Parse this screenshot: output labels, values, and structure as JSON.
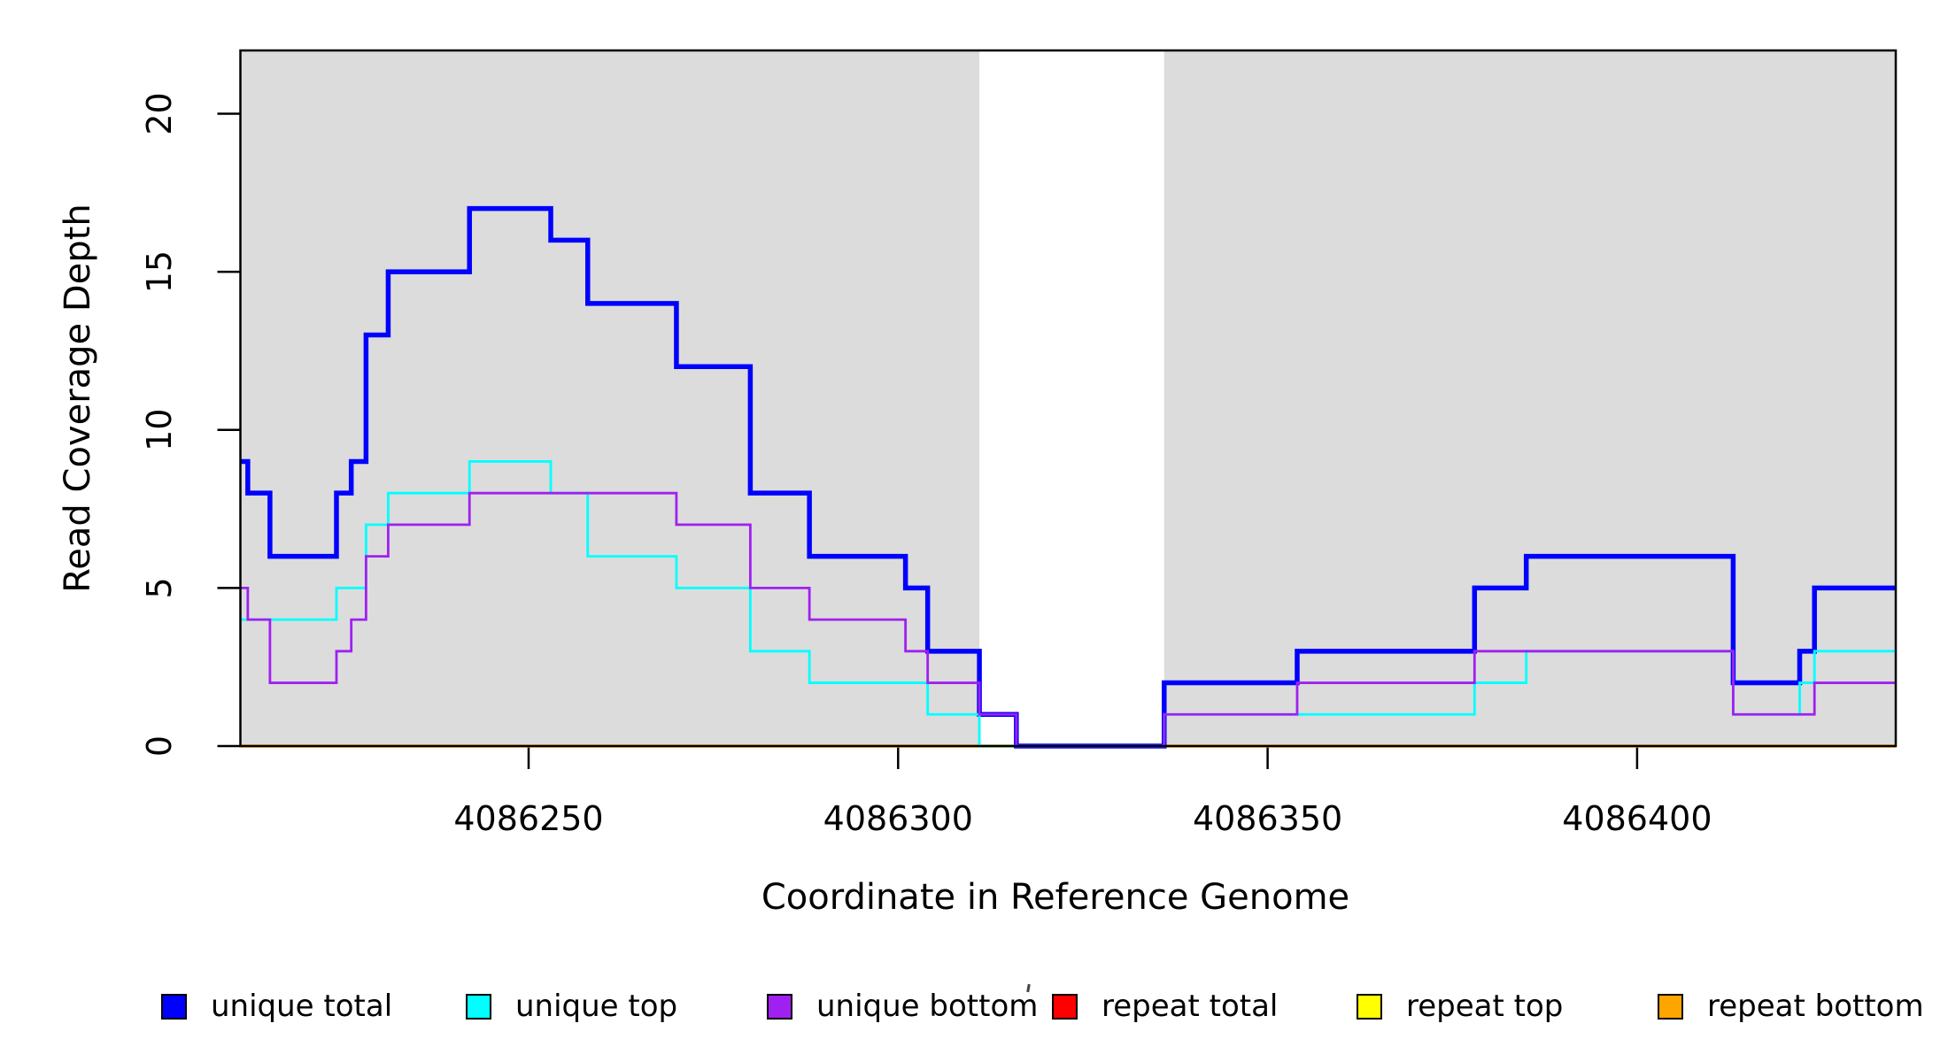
{
  "chart_data": {
    "type": "line",
    "subtype": "step-post",
    "title": "",
    "xlabel": "Coordinate in Reference Genome",
    "ylabel": "Read Coverage Depth",
    "x_range": [
      4086211,
      4086435
    ],
    "y_range": [
      0,
      22
    ],
    "x_ticks": [
      4086250,
      4086300,
      4086350,
      4086400
    ],
    "y_ticks": [
      0,
      5,
      10,
      15,
      20
    ],
    "grid": false,
    "legend_position": "bottom",
    "plot_background": "#ffffff",
    "shade_color": "#DCDCDC",
    "shaded_regions": [
      [
        4086211,
        4086311
      ],
      [
        4086336,
        4086435
      ]
    ],
    "white_gap_region": [
      4086311,
      4086336
    ],
    "draw_order": [
      3,
      4,
      5,
      0,
      1,
      2
    ],
    "series": [
      {
        "name": "unique total",
        "color": "#0000FF",
        "line_width": 5.5,
        "breakpoints": [
          [
            4086211,
            9
          ],
          [
            4086212,
            8
          ],
          [
            4086215,
            6
          ],
          [
            4086224,
            8
          ],
          [
            4086226,
            9
          ],
          [
            4086228,
            13
          ],
          [
            4086231,
            15
          ],
          [
            4086242,
            17
          ],
          [
            4086253,
            16
          ],
          [
            4086258,
            14
          ],
          [
            4086270,
            12
          ],
          [
            4086280,
            8
          ],
          [
            4086288,
            6
          ],
          [
            4086301,
            5
          ],
          [
            4086304,
            3
          ],
          [
            4086311,
            1
          ],
          [
            4086316,
            0
          ],
          [
            4086336,
            2
          ],
          [
            4086354,
            3
          ],
          [
            4086378,
            5
          ],
          [
            4086385,
            6
          ],
          [
            4086413,
            2
          ],
          [
            4086422,
            3
          ],
          [
            4086424,
            5
          ]
        ]
      },
      {
        "name": "unique top",
        "color": "#00FFFF",
        "line_width": 2.8,
        "breakpoints": [
          [
            4086211,
            4
          ],
          [
            4086224,
            5
          ],
          [
            4086228,
            7
          ],
          [
            4086231,
            8
          ],
          [
            4086242,
            9
          ],
          [
            4086253,
            8
          ],
          [
            4086258,
            6
          ],
          [
            4086270,
            5
          ],
          [
            4086280,
            3
          ],
          [
            4086288,
            2
          ],
          [
            4086304,
            1
          ],
          [
            4086311,
            0
          ],
          [
            4086336,
            1
          ],
          [
            4086378,
            2
          ],
          [
            4086385,
            3
          ],
          [
            4086413,
            1
          ],
          [
            4086422,
            2
          ],
          [
            4086424,
            3
          ]
        ]
      },
      {
        "name": "unique bottom",
        "color": "#A020F0",
        "line_width": 2.8,
        "breakpoints": [
          [
            4086211,
            5
          ],
          [
            4086212,
            4
          ],
          [
            4086215,
            2
          ],
          [
            4086224,
            3
          ],
          [
            4086226,
            4
          ],
          [
            4086228,
            6
          ],
          [
            4086231,
            7
          ],
          [
            4086242,
            8
          ],
          [
            4086270,
            7
          ],
          [
            4086280,
            5
          ],
          [
            4086288,
            4
          ],
          [
            4086301,
            3
          ],
          [
            4086304,
            2
          ],
          [
            4086311,
            1
          ],
          [
            4086316,
            0
          ],
          [
            4086336,
            1
          ],
          [
            4086354,
            2
          ],
          [
            4086378,
            3
          ],
          [
            4086413,
            1
          ],
          [
            4086424,
            2
          ]
        ]
      },
      {
        "name": "repeat total",
        "color": "#FF0000",
        "line_width": 3,
        "breakpoints": [
          [
            4086211,
            0
          ]
        ]
      },
      {
        "name": "repeat top",
        "color": "#FFFF00",
        "line_width": 3,
        "breakpoints": [
          [
            4086211,
            0
          ]
        ]
      },
      {
        "name": "repeat bottom",
        "color": "#FFA500",
        "line_width": 3.5,
        "breakpoints": [
          [
            4086211,
            0
          ]
        ]
      }
    ]
  }
}
